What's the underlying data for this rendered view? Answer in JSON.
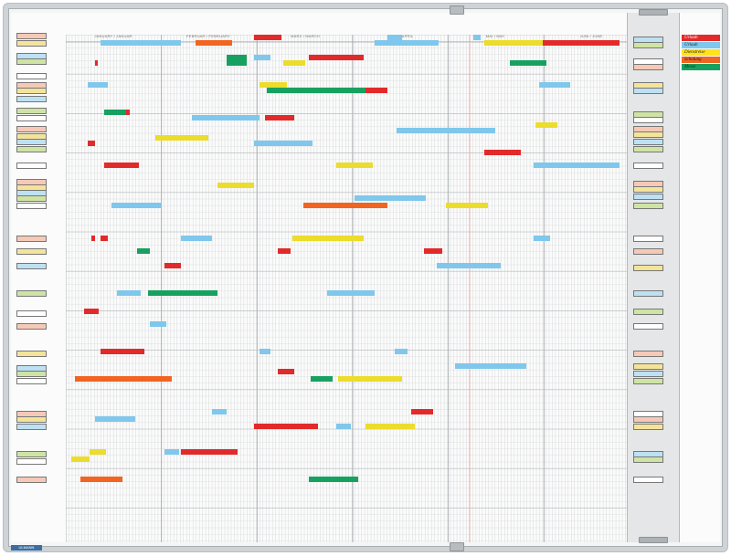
{
  "board": {
    "months": [
      "JANUARY / JANUAR",
      "FEBRUAR / FEBRUARY",
      "MÄRZ / MARCH",
      "APRIL / APRIL",
      "MAI / MAY",
      "JUNI / JUNE"
    ],
    "legend": [
      {
        "label": "Urlaub",
        "color": "#e22a2a"
      },
      {
        "label": "Urlaub",
        "color": "#7fc7ec"
      },
      {
        "label": "Dienstreise",
        "color": "#ffe21a"
      },
      {
        "label": "Schulung",
        "color": "#f16421"
      },
      {
        "label": "Messe",
        "color": "#17a160"
      }
    ],
    "brand": "ULMANN"
  },
  "colors": {
    "red": "#e22a2a",
    "blue": "#7fc7ec",
    "yellow": "#ecdc2b",
    "orange": "#f16421",
    "green": "#17a160",
    "tag_pink": "#f6c9b7",
    "tag_yellow": "#f4e49a",
    "tag_blue": "#bde1f3",
    "tag_green": "#cfe4a4",
    "tag_white": "#ffffff"
  }
}
